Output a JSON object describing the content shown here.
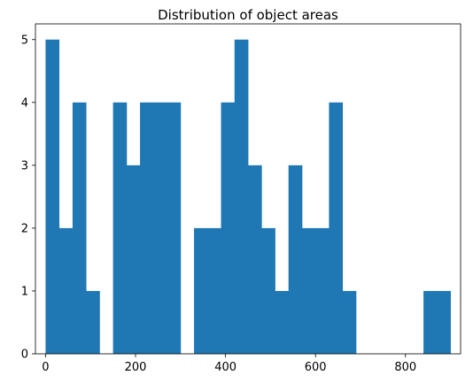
{
  "chart_data": {
    "type": "bar",
    "title": "Distribution of object areas",
    "xlabel": "",
    "ylabel": "",
    "bins": [
      {
        "x0": 0,
        "x1": 30,
        "count": 5
      },
      {
        "x0": 30,
        "x1": 60,
        "count": 2
      },
      {
        "x0": 60,
        "x1": 90,
        "count": 4
      },
      {
        "x0": 90,
        "x1": 120,
        "count": 1
      },
      {
        "x0": 120,
        "x1": 150,
        "count": 0
      },
      {
        "x0": 150,
        "x1": 180,
        "count": 4
      },
      {
        "x0": 180,
        "x1": 210,
        "count": 3
      },
      {
        "x0": 210,
        "x1": 240,
        "count": 4
      },
      {
        "x0": 240,
        "x1": 270,
        "count": 4
      },
      {
        "x0": 270,
        "x1": 300,
        "count": 4
      },
      {
        "x0": 300,
        "x1": 330,
        "count": 0
      },
      {
        "x0": 330,
        "x1": 360,
        "count": 2
      },
      {
        "x0": 360,
        "x1": 390,
        "count": 2
      },
      {
        "x0": 390,
        "x1": 420,
        "count": 4
      },
      {
        "x0": 420,
        "x1": 450,
        "count": 5
      },
      {
        "x0": 450,
        "x1": 480,
        "count": 3
      },
      {
        "x0": 480,
        "x1": 510,
        "count": 2
      },
      {
        "x0": 510,
        "x1": 540,
        "count": 1
      },
      {
        "x0": 540,
        "x1": 570,
        "count": 3
      },
      {
        "x0": 570,
        "x1": 600,
        "count": 2
      },
      {
        "x0": 600,
        "x1": 630,
        "count": 2
      },
      {
        "x0": 630,
        "x1": 660,
        "count": 4
      },
      {
        "x0": 660,
        "x1": 690,
        "count": 1
      },
      {
        "x0": 690,
        "x1": 720,
        "count": 0
      },
      {
        "x0": 720,
        "x1": 750,
        "count": 0
      },
      {
        "x0": 750,
        "x1": 780,
        "count": 0
      },
      {
        "x0": 780,
        "x1": 810,
        "count": 0
      },
      {
        "x0": 810,
        "x1": 840,
        "count": 0
      },
      {
        "x0": 840,
        "x1": 870,
        "count": 1
      },
      {
        "x0": 870,
        "x1": 900,
        "count": 1
      }
    ],
    "xlim": [
      -22.5,
      922.5
    ],
    "ylim": [
      0,
      5.25
    ],
    "xticks": [
      0,
      200,
      400,
      600,
      800
    ],
    "yticks": [
      0,
      1,
      2,
      3,
      4,
      5
    ],
    "bar_color": "#1f77b4",
    "grid": false,
    "legend": "none"
  }
}
